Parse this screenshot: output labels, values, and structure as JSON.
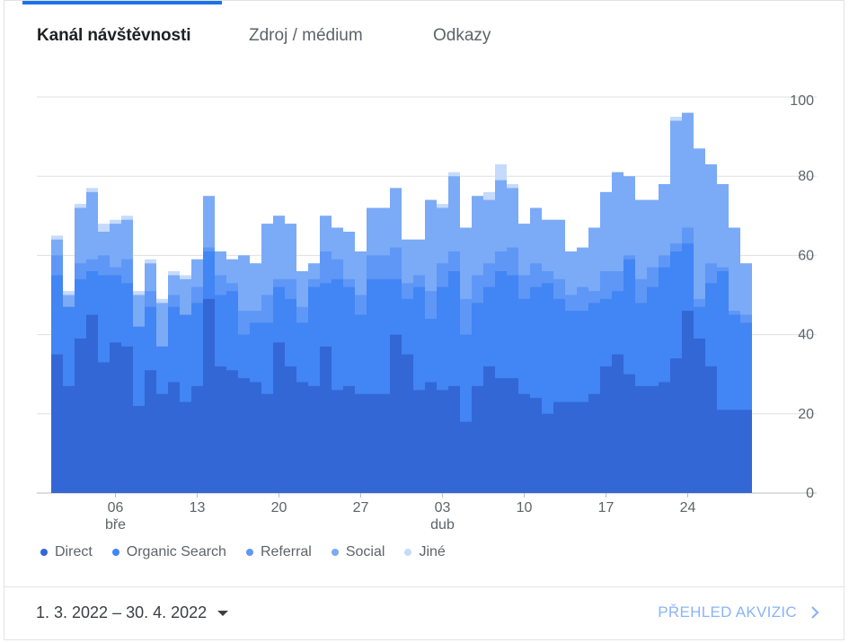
{
  "tabs": [
    {
      "label": "Kanál návštěvnosti",
      "active": true
    },
    {
      "label": "Zdroj / médium",
      "active": false
    },
    {
      "label": "Odkazy",
      "active": false
    }
  ],
  "chart_data": {
    "type": "area",
    "stacked": true,
    "step": true,
    "ylim": [
      0,
      100
    ],
    "yticks": [
      0,
      20,
      40,
      60,
      80,
      100
    ],
    "y_axis_side": "right",
    "grid": true,
    "legend_position": "bottom-left",
    "x_ticks": [
      {
        "label": "06",
        "sub": "bře",
        "index": 5
      },
      {
        "label": "13",
        "sub": "",
        "index": 12
      },
      {
        "label": "20",
        "sub": "",
        "index": 19
      },
      {
        "label": "27",
        "sub": "",
        "index": 26
      },
      {
        "label": "03",
        "sub": "dub",
        "index": 33
      },
      {
        "label": "10",
        "sub": "",
        "index": 40
      },
      {
        "label": "17",
        "sub": "",
        "index": 47
      },
      {
        "label": "24",
        "sub": "",
        "index": 54
      }
    ],
    "series": [
      {
        "name": "Direct",
        "color": "#3367d6",
        "values": [
          35,
          27,
          39,
          45,
          33,
          38,
          37,
          22,
          31,
          25,
          28,
          23,
          27,
          49,
          32,
          31,
          29,
          28,
          25,
          38,
          32,
          28,
          27,
          37,
          26,
          27,
          25,
          25,
          25,
          40,
          35,
          26,
          28,
          26,
          27,
          18,
          27,
          32,
          29,
          29,
          25,
          24,
          20,
          23,
          23,
          23,
          25,
          32,
          35,
          30,
          27,
          27,
          28,
          34,
          46,
          39,
          32,
          21,
          21,
          21
        ]
      },
      {
        "name": "Organic Search",
        "color": "#4285f4",
        "values": [
          20,
          20,
          15,
          11,
          22,
          17,
          16,
          20,
          16,
          12,
          19,
          22,
          21,
          12,
          18,
          20,
          11,
          15,
          18,
          14,
          17,
          15,
          25,
          16,
          28,
          25,
          20,
          29,
          29,
          14,
          14,
          26,
          16,
          26,
          29,
          22,
          21,
          20,
          27,
          26,
          24,
          28,
          33,
          26,
          23,
          23,
          23,
          17,
          16,
          29,
          21,
          25,
          29,
          27,
          17,
          8,
          21,
          35,
          24,
          22
        ]
      },
      {
        "name": "Referral",
        "color": "#5e97f6",
        "values": [
          5,
          0,
          4,
          3,
          5,
          2,
          6,
          0,
          4,
          0,
          3,
          0,
          4,
          1,
          5,
          2,
          6,
          3,
          7,
          2,
          5,
          4,
          2,
          8,
          5,
          2,
          5,
          6,
          6,
          8,
          4,
          3,
          7,
          6,
          5,
          9,
          7,
          6,
          5,
          7,
          6,
          6,
          3,
          5,
          4,
          6,
          3,
          7,
          5,
          1,
          6,
          5,
          3,
          2,
          4,
          2,
          5,
          1,
          1,
          2
        ]
      },
      {
        "name": "Social",
        "color": "#7baaf7",
        "values": [
          4,
          3,
          14,
          17,
          6,
          11,
          10,
          8,
          7,
          11,
          5,
          9,
          7,
          13,
          6,
          6,
          14,
          12,
          18,
          16,
          14,
          9,
          4,
          9,
          8,
          12,
          11,
          12,
          12,
          15,
          11,
          9,
          23,
          14,
          19,
          18,
          20,
          16,
          18,
          15,
          13,
          14,
          13,
          15,
          11,
          10,
          16,
          20,
          25,
          20,
          20,
          17,
          18,
          31,
          29,
          38,
          25,
          21,
          21,
          13
        ]
      },
      {
        "name": "Jiné",
        "color": "#c6dafc",
        "values": [
          1,
          1,
          1,
          1,
          2,
          1,
          1,
          1,
          1,
          1,
          1,
          1,
          0,
          0,
          0,
          0,
          0,
          0,
          0,
          0,
          0,
          0,
          0,
          0,
          0,
          0,
          0,
          0,
          0,
          0,
          0,
          0,
          0,
          1,
          1,
          0,
          0,
          2,
          4,
          1,
          0,
          0,
          0,
          0,
          0,
          0,
          0,
          0,
          0,
          0,
          0,
          0,
          0,
          1,
          0,
          0,
          0,
          0,
          0,
          0
        ]
      }
    ]
  },
  "footer": {
    "date_range": "1. 3. 2022 – 30. 4. 2022",
    "report_link": "PŘEHLED AKVIZIC"
  }
}
